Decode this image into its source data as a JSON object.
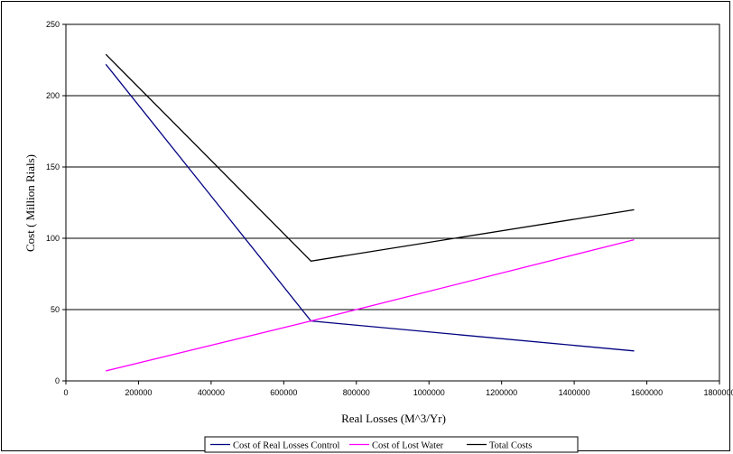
{
  "chart_data": {
    "type": "line",
    "xlabel": "Real Losses (M^3/Yr)",
    "ylabel": "Cost ( Million Rials)",
    "xlim": [
      0,
      1800000
    ],
    "ylim": [
      0,
      250
    ],
    "x_ticks": [
      0,
      200000,
      400000,
      600000,
      800000,
      1000000,
      1200000,
      1400000,
      1600000,
      1800000
    ],
    "y_ticks": [
      0,
      50,
      100,
      150,
      200,
      250
    ],
    "grid": "horizontal",
    "legend_position": "bottom",
    "series": [
      {
        "name": "Cost of Real Losses Control",
        "color": "#000080",
        "x": [
          110000,
          675000,
          1565000
        ],
        "y": [
          222,
          42,
          21
        ]
      },
      {
        "name": "Cost of Lost Water",
        "color": "#ff00ff",
        "x": [
          110000,
          675000,
          1565000
        ],
        "y": [
          7,
          42,
          99
        ]
      },
      {
        "name": "Total Costs",
        "color": "#000000",
        "x": [
          110000,
          675000,
          1565000
        ],
        "y": [
          229,
          84,
          120
        ]
      }
    ]
  }
}
